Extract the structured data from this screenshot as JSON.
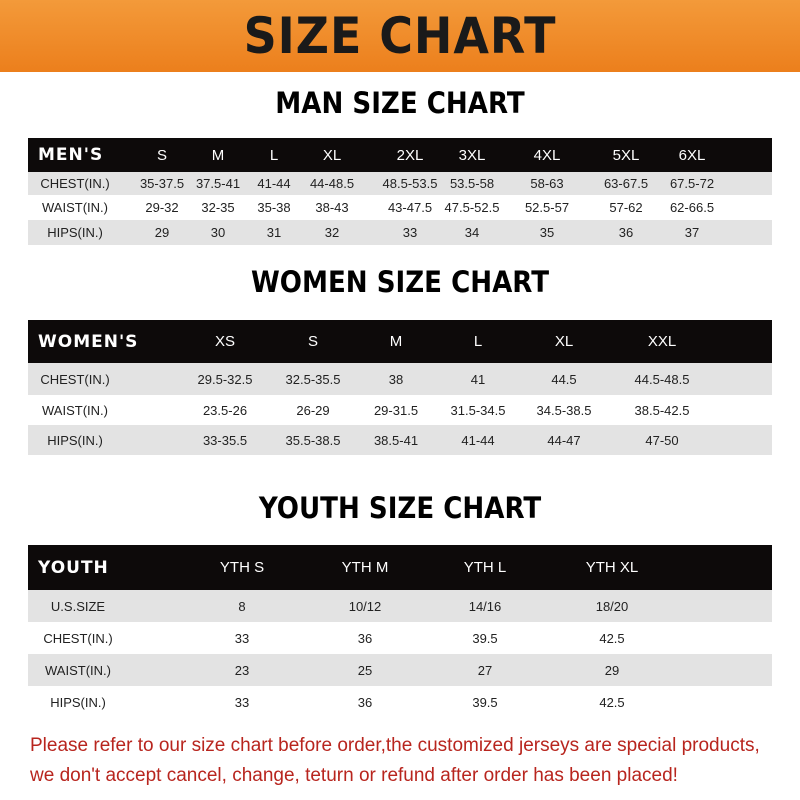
{
  "banner_title": "SIZE CHART",
  "men": {
    "title": "MAN SIZE CHART",
    "header": [
      "MEN'S",
      "S",
      "M",
      "L",
      "XL",
      "2XL",
      "3XL",
      "4XL",
      "5XL",
      "6XL"
    ],
    "rows": [
      [
        "CHEST(IN.)",
        "35-37.5",
        "37.5-41",
        "41-44",
        "44-48.5",
        "48.5-53.5",
        "53.5-58",
        "58-63",
        "63-67.5",
        "67.5-72"
      ],
      [
        "WAIST(IN.)",
        "29-32",
        "32-35",
        "35-38",
        "38-43",
        "43-47.5",
        "47.5-52.5",
        "52.5-57",
        "57-62",
        "62-66.5"
      ],
      [
        "HIPS(IN.)",
        "29",
        "30",
        "31",
        "32",
        "33",
        "34",
        "35",
        "36",
        "37"
      ]
    ]
  },
  "women": {
    "title": "WOMEN SIZE CHART",
    "header": [
      "WOMEN'S",
      "XS",
      "S",
      "M",
      "L",
      "XL",
      "XXL"
    ],
    "rows": [
      [
        "CHEST(IN.)",
        "29.5-32.5",
        "32.5-35.5",
        "38",
        "41",
        "44.5",
        "44.5-48.5"
      ],
      [
        "WAIST(IN.)",
        "23.5-26",
        "26-29",
        "29-31.5",
        "31.5-34.5",
        "34.5-38.5",
        "38.5-42.5"
      ],
      [
        "HIPS(IN.)",
        "33-35.5",
        "35.5-38.5",
        "38.5-41",
        "41-44",
        "44-47",
        "47-50"
      ]
    ]
  },
  "youth": {
    "title": "YOUTH SIZE CHART",
    "header": [
      "YOUTH",
      "YTH S",
      "YTH M",
      "YTH L",
      "YTH XL"
    ],
    "rows": [
      [
        "U.S.SIZE",
        "8",
        "10/12",
        "14/16",
        "18/20"
      ],
      [
        "CHEST(IN.)",
        "33",
        "36",
        "39.5",
        "42.5"
      ],
      [
        "WAIST(IN.)",
        "23",
        "25",
        "27",
        "29"
      ],
      [
        "HIPS(IN.)",
        "33",
        "36",
        "39.5",
        "42.5"
      ]
    ]
  },
  "notice": [
    "Please refer to our size chart before order,the customized jerseys are special products,",
    "we don't accept cancel, change, teturn or refund after order has been placed!"
  ],
  "colors": {
    "banner": "#ec7f1c",
    "header_row": "#0d0a0a",
    "stripe": "#e3e3e3",
    "notice": "#b8251e"
  }
}
